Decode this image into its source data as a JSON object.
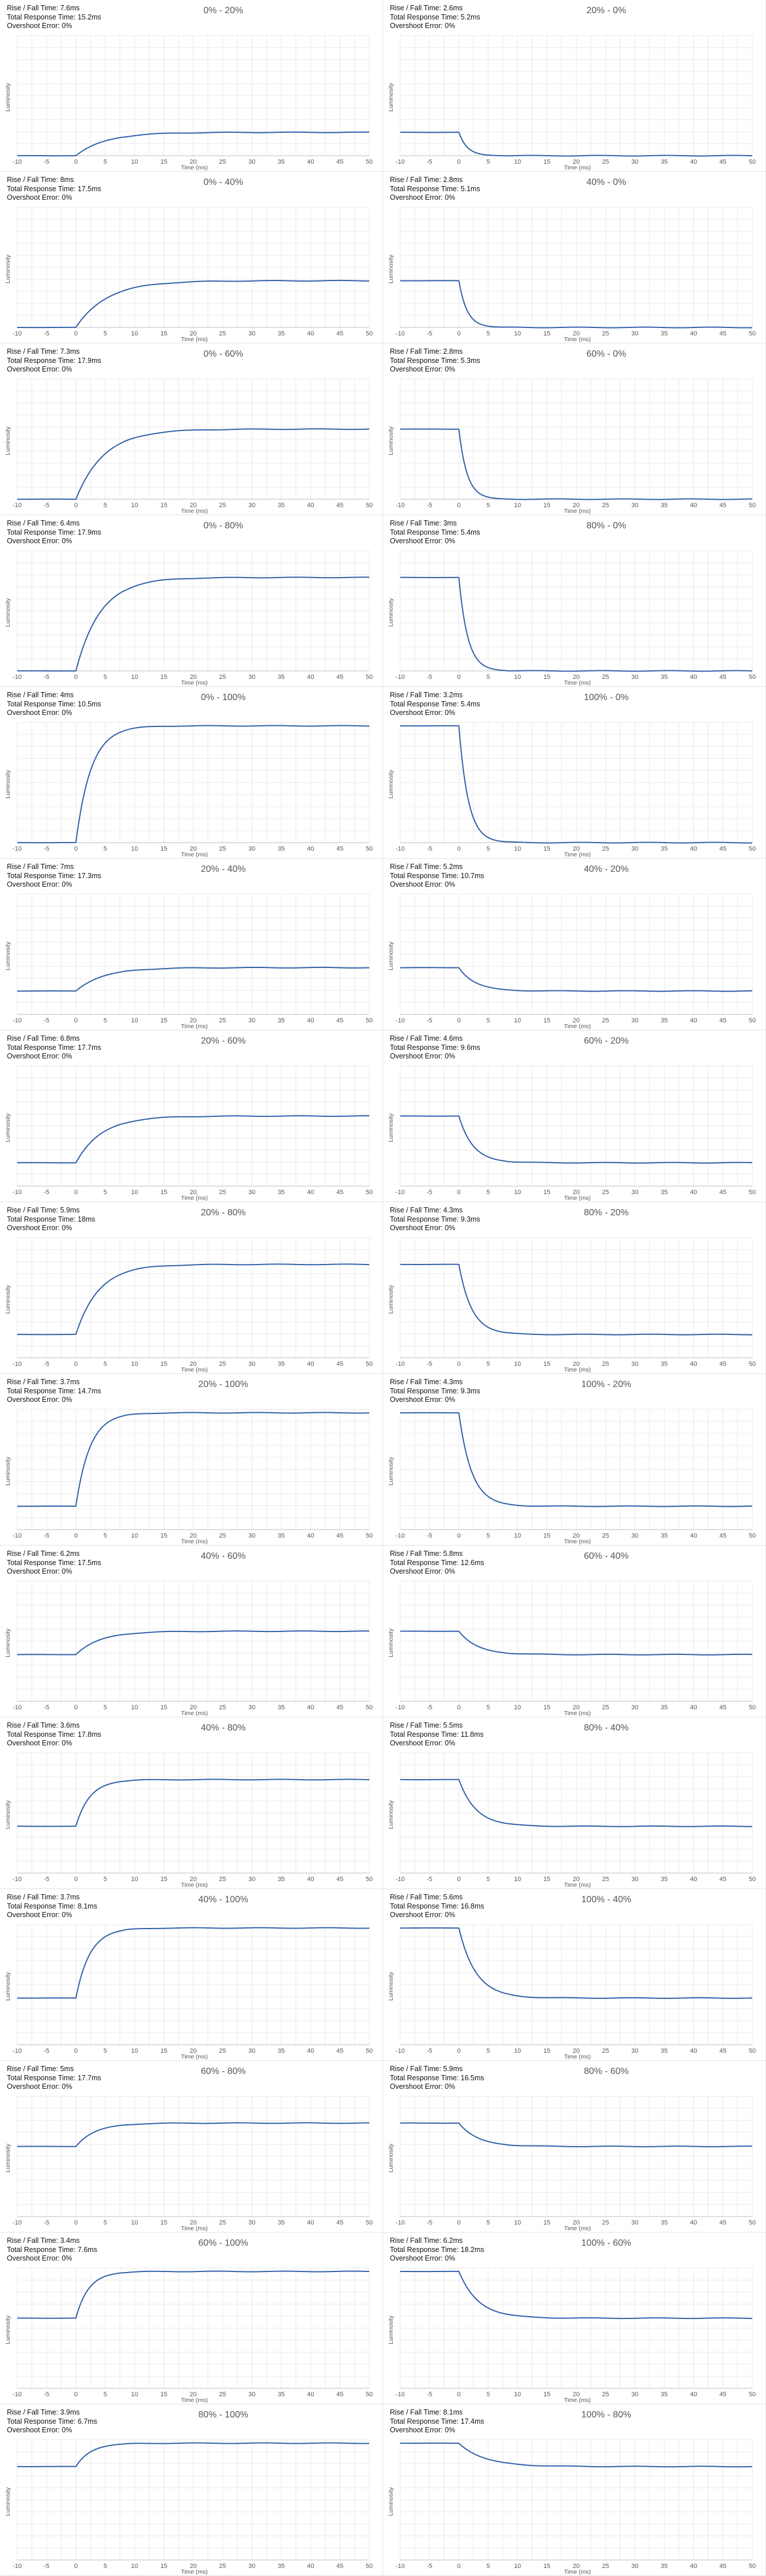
{
  "labels": {
    "rise_fall": "Rise / Fall Time: ",
    "total": "Total Response Time: ",
    "overshoot": "Overshoot Error: "
  },
  "chart_data": [
    {
      "type": "line",
      "title": "0% - 20%",
      "rise_fall": "7.6ms",
      "total": "15.2ms",
      "overshoot": "0%",
      "from": 0,
      "to": 20,
      "tau": 5.0,
      "xlabel": "Time (ms)",
      "ylabel": "Luminosity",
      "xlim": [
        -10,
        50
      ],
      "xticks": [
        -10,
        -5,
        0,
        5,
        10,
        15,
        20,
        25,
        30,
        35,
        40,
        45,
        50
      ],
      "grid": true
    },
    {
      "type": "line",
      "title": "20% - 0%",
      "rise_fall": "2.6ms",
      "total": "5.2ms",
      "overshoot": "0%",
      "from": 20,
      "to": 0,
      "tau": 1.4,
      "xlabel": "Time (ms)",
      "ylabel": "Luminosity",
      "xlim": [
        -10,
        50
      ],
      "xticks": [
        -10,
        -5,
        0,
        5,
        10,
        15,
        20,
        25,
        30,
        35,
        40,
        45,
        50
      ],
      "grid": true
    },
    {
      "type": "line",
      "title": "0% - 40%",
      "rise_fall": "8ms",
      "total": "17.5ms",
      "overshoot": "0%",
      "from": 0,
      "to": 40,
      "tau": 5.3,
      "xlabel": "Time (ms)",
      "ylabel": "Luminosity",
      "xlim": [
        -10,
        50
      ],
      "xticks": [
        -10,
        -5,
        0,
        5,
        10,
        15,
        20,
        25,
        30,
        35,
        40,
        45,
        50
      ],
      "grid": true
    },
    {
      "type": "line",
      "title": "40% - 0%",
      "rise_fall": "2.8ms",
      "total": "5.1ms",
      "overshoot": "0%",
      "from": 40,
      "to": 0,
      "tau": 1.4,
      "xlabel": "Time (ms)",
      "ylabel": "Luminosity",
      "xlim": [
        -10,
        50
      ],
      "xticks": [
        -10,
        -5,
        0,
        5,
        10,
        15,
        20,
        25,
        30,
        35,
        40,
        45,
        50
      ],
      "grid": true
    },
    {
      "type": "line",
      "title": "0% - 60%",
      "rise_fall": "7.3ms",
      "total": "17.9ms",
      "overshoot": "0%",
      "from": 0,
      "to": 60,
      "tau": 4.8,
      "xlabel": "Time (ms)",
      "ylabel": "Luminosity",
      "xlim": [
        -10,
        50
      ],
      "xticks": [
        -10,
        -5,
        0,
        5,
        10,
        15,
        20,
        25,
        30,
        35,
        40,
        45,
        50
      ],
      "grid": true
    },
    {
      "type": "line",
      "title": "60% - 0%",
      "rise_fall": "2.8ms",
      "total": "5.3ms",
      "overshoot": "0%",
      "from": 60,
      "to": 0,
      "tau": 1.4,
      "xlabel": "Time (ms)",
      "ylabel": "Luminosity",
      "xlim": [
        -10,
        50
      ],
      "xticks": [
        -10,
        -5,
        0,
        5,
        10,
        15,
        20,
        25,
        30,
        35,
        40,
        45,
        50
      ],
      "grid": true
    },
    {
      "type": "line",
      "title": "0% - 80%",
      "rise_fall": "6.4ms",
      "total": "17.9ms",
      "overshoot": "0%",
      "from": 0,
      "to": 80,
      "tau": 4.2,
      "xlabel": "Time (ms)",
      "ylabel": "Luminosity",
      "xlim": [
        -10,
        50
      ],
      "xticks": [
        -10,
        -5,
        0,
        5,
        10,
        15,
        20,
        25,
        30,
        35,
        40,
        45,
        50
      ],
      "grid": true
    },
    {
      "type": "line",
      "title": "80% - 0%",
      "rise_fall": "3ms",
      "total": "5.4ms",
      "overshoot": "0%",
      "from": 80,
      "to": 0,
      "tau": 1.5,
      "xlabel": "Time (ms)",
      "ylabel": "Luminosity",
      "xlim": [
        -10,
        50
      ],
      "xticks": [
        -10,
        -5,
        0,
        5,
        10,
        15,
        20,
        25,
        30,
        35,
        40,
        45,
        50
      ],
      "grid": true
    },
    {
      "type": "line",
      "title": "0% - 100%",
      "rise_fall": "4ms",
      "total": "10.5ms",
      "overshoot": "0%",
      "from": 0,
      "to": 100,
      "tau": 2.6,
      "xlabel": "Time (ms)",
      "ylabel": "Luminosity",
      "xlim": [
        -10,
        50
      ],
      "xticks": [
        -10,
        -5,
        0,
        5,
        10,
        15,
        20,
        25,
        30,
        35,
        40,
        45,
        50
      ],
      "grid": true
    },
    {
      "type": "line",
      "title": "100% - 0%",
      "rise_fall": "3.2ms",
      "total": "5.4ms",
      "overshoot": "0%",
      "from": 100,
      "to": 0,
      "tau": 1.6,
      "xlabel": "Time (ms)",
      "ylabel": "Luminosity",
      "xlim": [
        -10,
        50
      ],
      "xticks": [
        -10,
        -5,
        0,
        5,
        10,
        15,
        20,
        25,
        30,
        35,
        40,
        45,
        50
      ],
      "grid": true
    },
    {
      "type": "line",
      "title": "20% - 40%",
      "rise_fall": "7ms",
      "total": "17.3ms",
      "overshoot": "0%",
      "from": 20,
      "to": 40,
      "tau": 4.6,
      "xlabel": "Time (ms)",
      "ylabel": "Luminosity",
      "xlim": [
        -10,
        50
      ],
      "xticks": [
        -10,
        -5,
        0,
        5,
        10,
        15,
        20,
        25,
        30,
        35,
        40,
        45,
        50
      ],
      "grid": true
    },
    {
      "type": "line",
      "title": "40% - 20%",
      "rise_fall": "5.2ms",
      "total": "10.7ms",
      "overshoot": "0%",
      "from": 40,
      "to": 20,
      "tau": 2.8,
      "xlabel": "Time (ms)",
      "ylabel": "Luminosity",
      "xlim": [
        -10,
        50
      ],
      "xticks": [
        -10,
        -5,
        0,
        5,
        10,
        15,
        20,
        25,
        30,
        35,
        40,
        45,
        50
      ],
      "grid": true
    },
    {
      "type": "line",
      "title": "20% - 60%",
      "rise_fall": "6.8ms",
      "total": "17.7ms",
      "overshoot": "0%",
      "from": 20,
      "to": 60,
      "tau": 4.4,
      "xlabel": "Time (ms)",
      "ylabel": "Luminosity",
      "xlim": [
        -10,
        50
      ],
      "xticks": [
        -10,
        -5,
        0,
        5,
        10,
        15,
        20,
        25,
        30,
        35,
        40,
        45,
        50
      ],
      "grid": true
    },
    {
      "type": "line",
      "title": "60% - 20%",
      "rise_fall": "4.6ms",
      "total": "9.6ms",
      "overshoot": "0%",
      "from": 60,
      "to": 20,
      "tau": 2.4,
      "xlabel": "Time (ms)",
      "ylabel": "Luminosity",
      "xlim": [
        -10,
        50
      ],
      "xticks": [
        -10,
        -5,
        0,
        5,
        10,
        15,
        20,
        25,
        30,
        35,
        40,
        45,
        50
      ],
      "grid": true
    },
    {
      "type": "line",
      "title": "20% - 80%",
      "rise_fall": "5.9ms",
      "total": "18ms",
      "overshoot": "0%",
      "from": 20,
      "to": 80,
      "tau": 3.9,
      "xlabel": "Time (ms)",
      "ylabel": "Luminosity",
      "xlim": [
        -10,
        50
      ],
      "xticks": [
        -10,
        -5,
        0,
        5,
        10,
        15,
        20,
        25,
        30,
        35,
        40,
        45,
        50
      ],
      "grid": true
    },
    {
      "type": "line",
      "title": "80% - 20%",
      "rise_fall": "4.3ms",
      "total": "9.3ms",
      "overshoot": "0%",
      "from": 80,
      "to": 20,
      "tau": 2.2,
      "xlabel": "Time (ms)",
      "ylabel": "Luminosity",
      "xlim": [
        -10,
        50
      ],
      "xticks": [
        -10,
        -5,
        0,
        5,
        10,
        15,
        20,
        25,
        30,
        35,
        40,
        45,
        50
      ],
      "grid": true
    },
    {
      "type": "line",
      "title": "20% - 100%",
      "rise_fall": "3.7ms",
      "total": "14.7ms",
      "overshoot": "0%",
      "from": 20,
      "to": 100,
      "tau": 2.4,
      "xlabel": "Time (ms)",
      "ylabel": "Luminosity",
      "xlim": [
        -10,
        50
      ],
      "xticks": [
        -10,
        -5,
        0,
        5,
        10,
        15,
        20,
        25,
        30,
        35,
        40,
        45,
        50
      ],
      "grid": true
    },
    {
      "type": "line",
      "title": "100% - 20%",
      "rise_fall": "4.3ms",
      "total": "9.3ms",
      "overshoot": "0%",
      "from": 100,
      "to": 20,
      "tau": 2.2,
      "xlabel": "Time (ms)",
      "ylabel": "Luminosity",
      "xlim": [
        -10,
        50
      ],
      "xticks": [
        -10,
        -5,
        0,
        5,
        10,
        15,
        20,
        25,
        30,
        35,
        40,
        45,
        50
      ],
      "grid": true
    },
    {
      "type": "line",
      "title": "40% - 60%",
      "rise_fall": "6.2ms",
      "total": "17.5ms",
      "overshoot": "0%",
      "from": 40,
      "to": 60,
      "tau": 4.1,
      "xlabel": "Time (ms)",
      "ylabel": "Luminosity",
      "xlim": [
        -10,
        50
      ],
      "xticks": [
        -10,
        -5,
        0,
        5,
        10,
        15,
        20,
        25,
        30,
        35,
        40,
        45,
        50
      ],
      "grid": true
    },
    {
      "type": "line",
      "title": "60% - 40%",
      "rise_fall": "5.8ms",
      "total": "12.6ms",
      "overshoot": "0%",
      "from": 60,
      "to": 40,
      "tau": 3.1,
      "xlabel": "Time (ms)",
      "ylabel": "Luminosity",
      "xlim": [
        -10,
        50
      ],
      "xticks": [
        -10,
        -5,
        0,
        5,
        10,
        15,
        20,
        25,
        30,
        35,
        40,
        45,
        50
      ],
      "grid": true
    },
    {
      "type": "line",
      "title": "40% - 80%",
      "rise_fall": "3.6ms",
      "total": "17.8ms",
      "overshoot": "0%",
      "from": 40,
      "to": 80,
      "tau": 2.4,
      "xlabel": "Time (ms)",
      "ylabel": "Luminosity",
      "xlim": [
        -10,
        50
      ],
      "xticks": [
        -10,
        -5,
        0,
        5,
        10,
        15,
        20,
        25,
        30,
        35,
        40,
        45,
        50
      ],
      "grid": true
    },
    {
      "type": "line",
      "title": "80% - 40%",
      "rise_fall": "5.5ms",
      "total": "11.8ms",
      "overshoot": "0%",
      "from": 80,
      "to": 40,
      "tau": 2.9,
      "xlabel": "Time (ms)",
      "ylabel": "Luminosity",
      "xlim": [
        -10,
        50
      ],
      "xticks": [
        -10,
        -5,
        0,
        5,
        10,
        15,
        20,
        25,
        30,
        35,
        40,
        45,
        50
      ],
      "grid": true
    },
    {
      "type": "line",
      "title": "40% - 100%",
      "rise_fall": "3.7ms",
      "total": "8.1ms",
      "overshoot": "0%",
      "from": 40,
      "to": 100,
      "tau": 2.4,
      "xlabel": "Time (ms)",
      "ylabel": "Luminosity",
      "xlim": [
        -10,
        50
      ],
      "xticks": [
        -10,
        -5,
        0,
        5,
        10,
        15,
        20,
        25,
        30,
        35,
        40,
        45,
        50
      ],
      "grid": true
    },
    {
      "type": "line",
      "title": "100% - 40%",
      "rise_fall": "5.6ms",
      "total": "16.8ms",
      "overshoot": "0%",
      "from": 100,
      "to": 40,
      "tau": 2.9,
      "xlabel": "Time (ms)",
      "ylabel": "Luminosity",
      "xlim": [
        -10,
        50
      ],
      "xticks": [
        -10,
        -5,
        0,
        5,
        10,
        15,
        20,
        25,
        30,
        35,
        40,
        45,
        50
      ],
      "grid": true
    },
    {
      "type": "line",
      "title": "60% - 80%",
      "rise_fall": "5ms",
      "total": "17.7ms",
      "overshoot": "0%",
      "from": 60,
      "to": 80,
      "tau": 3.3,
      "xlabel": "Time (ms)",
      "ylabel": "Luminosity",
      "xlim": [
        -10,
        50
      ],
      "xticks": [
        -10,
        -5,
        0,
        5,
        10,
        15,
        20,
        25,
        30,
        35,
        40,
        45,
        50
      ],
      "grid": true
    },
    {
      "type": "line",
      "title": "80% - 60%",
      "rise_fall": "5.9ms",
      "total": "16.5ms",
      "overshoot": "0%",
      "from": 80,
      "to": 60,
      "tau": 3.2,
      "xlabel": "Time (ms)",
      "ylabel": "Luminosity",
      "xlim": [
        -10,
        50
      ],
      "xticks": [
        -10,
        -5,
        0,
        5,
        10,
        15,
        20,
        25,
        30,
        35,
        40,
        45,
        50
      ],
      "grid": true
    },
    {
      "type": "line",
      "title": "60% - 100%",
      "rise_fall": "3.4ms",
      "total": "7.6ms",
      "overshoot": "0%",
      "from": 60,
      "to": 100,
      "tau": 2.2,
      "xlabel": "Time (ms)",
      "ylabel": "Luminosity",
      "xlim": [
        -10,
        50
      ],
      "xticks": [
        -10,
        -5,
        0,
        5,
        10,
        15,
        20,
        25,
        30,
        35,
        40,
        45,
        50
      ],
      "grid": true
    },
    {
      "type": "line",
      "title": "100% - 60%",
      "rise_fall": "6.2ms",
      "total": "18.2ms",
      "overshoot": "0%",
      "from": 100,
      "to": 60,
      "tau": 3.3,
      "xlabel": "Time (ms)",
      "ylabel": "Luminosity",
      "xlim": [
        -10,
        50
      ],
      "xticks": [
        -10,
        -5,
        0,
        5,
        10,
        15,
        20,
        25,
        30,
        35,
        40,
        45,
        50
      ],
      "grid": true
    },
    {
      "type": "line",
      "title": "80% - 100%",
      "rise_fall": "3.9ms",
      "total": "6.7ms",
      "overshoot": "0%",
      "from": 80,
      "to": 100,
      "tau": 2.5,
      "xlabel": "Time (ms)",
      "ylabel": "Luminosity",
      "xlim": [
        -10,
        50
      ],
      "xticks": [
        -10,
        -5,
        0,
        5,
        10,
        15,
        20,
        25,
        30,
        35,
        40,
        45,
        50
      ],
      "grid": true
    },
    {
      "type": "line",
      "title": "100% - 80%",
      "rise_fall": "8.1ms",
      "total": "17.4ms",
      "overshoot": "0%",
      "from": 100,
      "to": 80,
      "tau": 4.3,
      "xlabel": "Time (ms)",
      "ylabel": "Luminosity",
      "xlim": [
        -10,
        50
      ],
      "xticks": [
        -10,
        -5,
        0,
        5,
        10,
        15,
        20,
        25,
        30,
        35,
        40,
        45,
        50
      ],
      "grid": true
    }
  ],
  "colors": {
    "line": "#2e5fa8",
    "grid": "#e8e8e8",
    "axis": "#bdbdbd"
  }
}
